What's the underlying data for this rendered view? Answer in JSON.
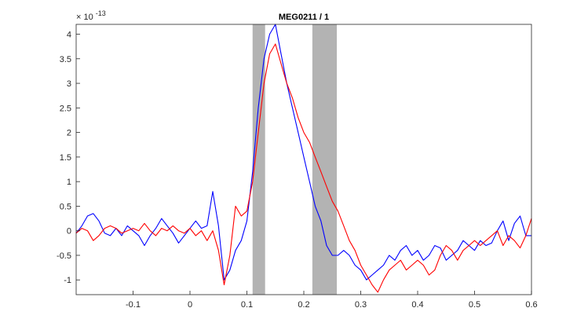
{
  "chart_data": {
    "type": "line",
    "title": "MEG0211 / 1",
    "xlabel": "",
    "ylabel": "",
    "y_exponent_label": {
      "base": "× 10",
      "exponent": "-13"
    },
    "xlim": [
      -0.2,
      0.6
    ],
    "ylim": [
      -1.3,
      4.2
    ],
    "x_ticks": [
      -0.1,
      0,
      0.1,
      0.2,
      0.3,
      0.4,
      0.5,
      0.6
    ],
    "x_tick_labels": [
      "-0.1",
      "0",
      "0.1",
      "0.2",
      "0.3",
      "0.4",
      "0.5",
      "0.6"
    ],
    "y_ticks": [
      -1,
      -0.5,
      0,
      0.5,
      1,
      1.5,
      2,
      2.5,
      3,
      3.5,
      4
    ],
    "y_tick_labels": [
      "-1",
      "-0.5",
      "0",
      "0.5",
      "1",
      "1.5",
      "2",
      "2.5",
      "3",
      "3.5",
      "4"
    ],
    "grid": false,
    "highlight_bands": [
      {
        "x0": 0.11,
        "x1": 0.132,
        "color": "#b3b3b3"
      },
      {
        "x0": 0.215,
        "x1": 0.258,
        "color": "#b3b3b3"
      }
    ],
    "series": [
      {
        "color": "#0000ff",
        "x": [
          -0.2,
          -0.19,
          -0.18,
          -0.17,
          -0.16,
          -0.15,
          -0.14,
          -0.13,
          -0.12,
          -0.11,
          -0.1,
          -0.09,
          -0.08,
          -0.07,
          -0.06,
          -0.05,
          -0.04,
          -0.03,
          -0.02,
          -0.01,
          0,
          0.01,
          0.02,
          0.03,
          0.04,
          0.05,
          0.06,
          0.07,
          0.08,
          0.09,
          0.1,
          0.11,
          0.12,
          0.13,
          0.14,
          0.15,
          0.16,
          0.17,
          0.18,
          0.19,
          0.2,
          0.21,
          0.22,
          0.23,
          0.24,
          0.25,
          0.26,
          0.27,
          0.28,
          0.29,
          0.3,
          0.31,
          0.32,
          0.33,
          0.34,
          0.35,
          0.36,
          0.37,
          0.38,
          0.39,
          0.4,
          0.41,
          0.42,
          0.43,
          0.44,
          0.45,
          0.46,
          0.47,
          0.48,
          0.49,
          0.5,
          0.51,
          0.52,
          0.53,
          0.54,
          0.55,
          0.56,
          0.57,
          0.58,
          0.59,
          0.6
        ],
        "y": [
          -0.05,
          0.1,
          0.3,
          0.35,
          0.2,
          -0.05,
          -0.1,
          0.05,
          -0.1,
          0.1,
          0.0,
          -0.1,
          -0.3,
          -0.1,
          0.05,
          0.25,
          0.1,
          -0.05,
          -0.25,
          -0.1,
          0.05,
          0.2,
          0.05,
          0.1,
          0.8,
          0.1,
          -1.0,
          -0.8,
          -0.4,
          -0.2,
          0.2,
          1.2,
          2.5,
          3.5,
          4.0,
          4.2,
          3.6,
          3.0,
          2.5,
          2.0,
          1.5,
          1.0,
          0.5,
          0.2,
          -0.3,
          -0.5,
          -0.5,
          -0.4,
          -0.5,
          -0.7,
          -0.8,
          -1.0,
          -0.9,
          -0.8,
          -0.7,
          -0.5,
          -0.6,
          -0.4,
          -0.3,
          -0.5,
          -0.4,
          -0.6,
          -0.5,
          -0.3,
          -0.35,
          -0.6,
          -0.5,
          -0.4,
          -0.2,
          -0.3,
          -0.4,
          -0.2,
          -0.3,
          -0.25,
          0.0,
          0.2,
          -0.2,
          0.15,
          0.3,
          -0.1,
          -0.1
        ]
      },
      {
        "color": "#ff0000",
        "x": [
          -0.2,
          -0.19,
          -0.18,
          -0.17,
          -0.16,
          -0.15,
          -0.14,
          -0.13,
          -0.12,
          -0.11,
          -0.1,
          -0.09,
          -0.08,
          -0.07,
          -0.06,
          -0.05,
          -0.04,
          -0.03,
          -0.02,
          -0.01,
          0,
          0.01,
          0.02,
          0.03,
          0.04,
          0.05,
          0.06,
          0.07,
          0.08,
          0.09,
          0.1,
          0.11,
          0.12,
          0.13,
          0.14,
          0.15,
          0.16,
          0.17,
          0.18,
          0.19,
          0.2,
          0.21,
          0.22,
          0.23,
          0.24,
          0.25,
          0.26,
          0.27,
          0.28,
          0.29,
          0.3,
          0.31,
          0.32,
          0.33,
          0.34,
          0.35,
          0.36,
          0.37,
          0.38,
          0.39,
          0.4,
          0.41,
          0.42,
          0.43,
          0.44,
          0.45,
          0.46,
          0.47,
          0.48,
          0.49,
          0.5,
          0.51,
          0.52,
          0.53,
          0.54,
          0.55,
          0.56,
          0.57,
          0.58,
          0.59,
          0.6
        ],
        "y": [
          -0.05,
          0.05,
          0.0,
          -0.2,
          -0.1,
          0.05,
          0.1,
          0.05,
          -0.05,
          0.0,
          0.05,
          0.0,
          0.15,
          0.0,
          -0.1,
          0.05,
          0.0,
          0.1,
          0.0,
          -0.05,
          0.05,
          -0.1,
          0.0,
          -0.2,
          0.0,
          -0.4,
          -1.1,
          -0.5,
          0.5,
          0.3,
          0.4,
          1.0,
          2.0,
          3.0,
          3.6,
          3.8,
          3.4,
          3.0,
          2.7,
          2.3,
          2.0,
          1.8,
          1.5,
          1.2,
          0.9,
          0.6,
          0.4,
          0.1,
          -0.2,
          -0.4,
          -0.7,
          -0.9,
          -1.1,
          -1.25,
          -1.0,
          -0.8,
          -0.7,
          -0.6,
          -0.8,
          -0.7,
          -0.6,
          -0.7,
          -0.9,
          -0.8,
          -0.5,
          -0.3,
          -0.4,
          -0.6,
          -0.4,
          -0.3,
          -0.2,
          -0.3,
          -0.2,
          -0.1,
          0.0,
          -0.3,
          -0.1,
          -0.2,
          -0.35,
          -0.1,
          0.25
        ]
      }
    ]
  }
}
